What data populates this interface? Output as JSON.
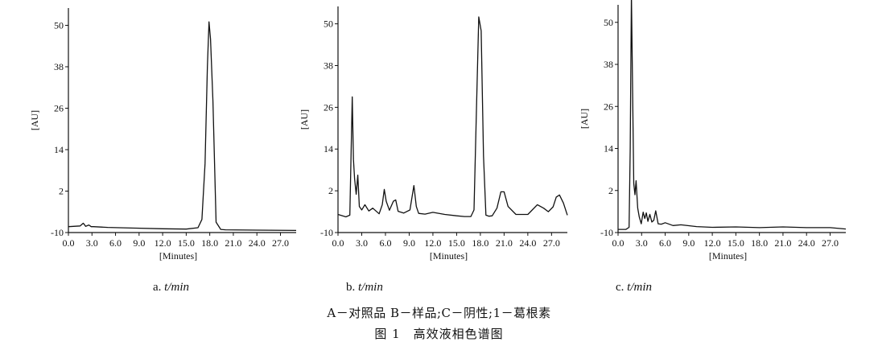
{
  "figure": {
    "legend": "A－对照品 B－样品;C－阴性;1－葛根素",
    "caption": "图 1　高效液相色谱图"
  },
  "chart_data": [
    {
      "type": "line",
      "panel_prefix": "a.",
      "panel_var": "t/min",
      "xlabel": "[Minutes]",
      "ylabel": "[AU]",
      "xlim": [
        0,
        29
      ],
      "ylim": [
        -10,
        55
      ],
      "xticks": [
        "0.0",
        "3.0",
        "6.0",
        "9.0",
        "12.0",
        "15.0",
        "18.0",
        "21.0",
        "24.0",
        "27.0"
      ],
      "yticks": [
        "-10",
        "2",
        "14",
        "26",
        "38",
        "50"
      ],
      "x": [
        0,
        1.5,
        1.9,
        2.2,
        2.6,
        2.9,
        3.2,
        5,
        8,
        12,
        15,
        16.5,
        17.0,
        17.4,
        17.7,
        17.9,
        18.1,
        18.4,
        18.8,
        19.4,
        20,
        24,
        29
      ],
      "values": [
        -8.3,
        -8.1,
        -7.3,
        -8.2,
        -7.8,
        -8.3,
        -8.3,
        -8.5,
        -8.7,
        -8.9,
        -9.0,
        -8.6,
        -6.2,
        10,
        38,
        51,
        46,
        28,
        -7,
        -9.1,
        -9.2,
        -9.3,
        -9.4
      ]
    },
    {
      "type": "line",
      "panel_prefix": "b.",
      "panel_var": "t/min",
      "xlabel": "[Minutes]",
      "ylabel": "[AU]",
      "xlim": [
        0,
        29
      ],
      "ylim": [
        -10,
        55
      ],
      "xticks": [
        "0.0",
        "3.0",
        "6.0",
        "9.0",
        "12.0",
        "15.0",
        "18.0",
        "21.0",
        "24.0",
        "27.0"
      ],
      "yticks": [
        "-10",
        "2",
        "14",
        "26",
        "38",
        "50"
      ],
      "x": [
        0,
        1.0,
        1.5,
        1.8,
        1.95,
        2.1,
        2.3,
        2.5,
        2.7,
        3.0,
        3.4,
        3.9,
        4.4,
        5.2,
        5.6,
        5.85,
        6.1,
        6.5,
        7.0,
        7.3,
        7.6,
        8.3,
        9.1,
        9.6,
        9.9,
        10.2,
        11.0,
        12.0,
        13.5,
        15.0,
        16.0,
        16.8,
        17.2,
        17.5,
        17.8,
        18.1,
        18.4,
        18.7,
        19.1,
        19.5,
        20.1,
        20.6,
        21.0,
        21.5,
        22.5,
        24.0,
        25.2,
        26.0,
        26.6,
        27.2,
        27.6,
        28.0,
        28.5,
        29.0
      ],
      "values": [
        -4.8,
        -5.5,
        -5.0,
        29,
        11,
        5.5,
        1.0,
        6.5,
        -2.5,
        -3.5,
        -2.0,
        -3.8,
        -3.0,
        -4.6,
        -2.0,
        2.4,
        -1.0,
        -3.6,
        -1.0,
        -0.6,
        -3.9,
        -4.4,
        -3.5,
        3.5,
        -2.5,
        -4.5,
        -4.7,
        -4.2,
        -4.8,
        -5.2,
        -5.4,
        -5.4,
        -3.5,
        25,
        52,
        48,
        12,
        -5.0,
        -5.3,
        -5.2,
        -3.0,
        1.7,
        1.7,
        -2.5,
        -4.8,
        -4.8,
        -2.0,
        -3.0,
        -4.0,
        -2.6,
        0.2,
        0.8,
        -1.5,
        -5.0
      ]
    },
    {
      "type": "line",
      "panel_prefix": "c.",
      "panel_var": "t/min",
      "xlabel": "[Minutes]",
      "ylabel": "[AU]",
      "xlim": [
        0,
        29
      ],
      "ylim": [
        -10,
        55
      ],
      "xticks": [
        "0.0",
        "3.0",
        "6.0",
        "9.0",
        "12.0",
        "15.0",
        "18.0",
        "21.0",
        "24.0",
        "27.0"
      ],
      "yticks": [
        "-10",
        "2",
        "14",
        "26",
        "38",
        "50"
      ],
      "x": [
        0,
        1.0,
        1.4,
        1.55,
        1.7,
        1.85,
        2.0,
        2.15,
        2.3,
        2.5,
        2.7,
        2.95,
        3.2,
        3.4,
        3.6,
        3.8,
        4.05,
        4.3,
        4.55,
        4.8,
        5.1,
        5.5,
        6.0,
        7.0,
        8.0,
        10,
        12,
        15,
        18,
        21,
        24,
        27,
        29
      ],
      "values": [
        -9.1,
        -9.1,
        -8.5,
        14,
        58,
        30,
        4,
        0.8,
        4.8,
        -3.0,
        -5.5,
        -7.5,
        -4.2,
        -6.0,
        -4.4,
        -6.8,
        -4.8,
        -7.0,
        -6.5,
        -3.8,
        -7.5,
        -7.6,
        -7.2,
        -8.0,
        -7.8,
        -8.3,
        -8.5,
        -8.4,
        -8.6,
        -8.4,
        -8.6,
        -8.6,
        -9.0
      ]
    }
  ]
}
